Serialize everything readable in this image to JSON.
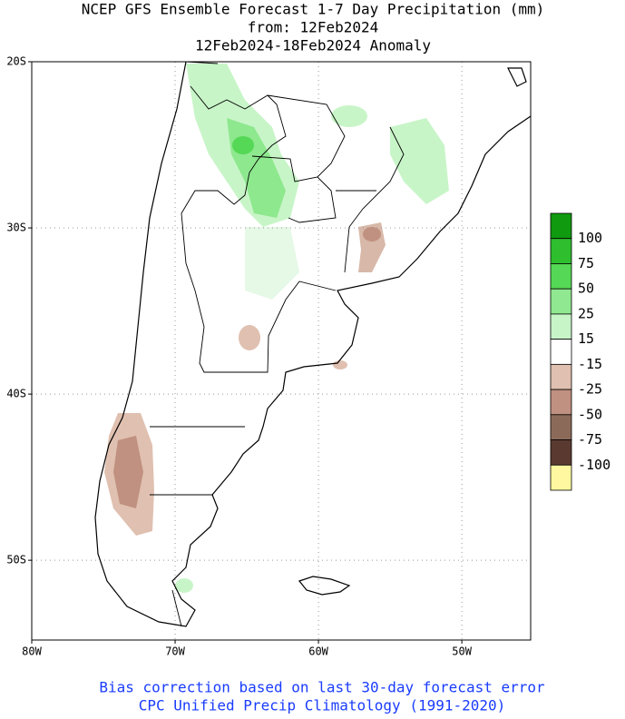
{
  "header": {
    "title": [
      "NCEP GFS Ensemble Forecast 1-7 Day Precipitation (mm)",
      "from: 12Feb2024",
      "12Feb2024-18Feb2024 Anomaly"
    ]
  },
  "map": {
    "lon_range": [
      -80,
      -45.2
    ],
    "lat_range": [
      -20,
      -54.8
    ],
    "lat_ticks": [
      {
        "value": -20,
        "label": "20S"
      },
      {
        "value": -30,
        "label": "30S"
      },
      {
        "value": -40,
        "label": "40S"
      },
      {
        "value": -50,
        "label": "50S"
      }
    ],
    "lon_ticks": [
      {
        "value": -80,
        "label": "80W"
      },
      {
        "value": -70,
        "label": "70W"
      },
      {
        "value": -60,
        "label": "60W"
      },
      {
        "value": -50,
        "label": "50W"
      }
    ],
    "grid": true
  },
  "colorbar": {
    "levels": [
      100,
      75,
      50,
      25,
      15,
      -15,
      -25,
      -50,
      -75,
      -100
    ],
    "colors": [
      "#109a10",
      "#2ebe2e",
      "#55d855",
      "#90e890",
      "#c8f5c8",
      "#ffffff",
      "#e0c0b0",
      "#c09080",
      "#8c6a5a",
      "#5a3a30",
      "#fff8a0"
    ]
  },
  "footer": [
    "Bias correction based on last 30-day forecast error",
    "CPC Unified Precip Climatology (1991-2020)"
  ]
}
